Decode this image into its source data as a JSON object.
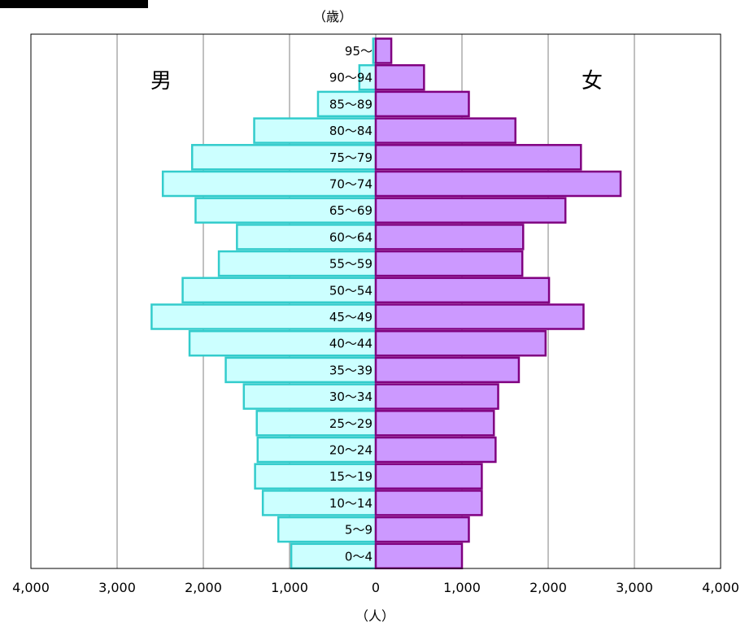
{
  "chart_data": {
    "type": "bar",
    "subtype": "population-pyramid",
    "categories": [
      "0〜4",
      "5〜9",
      "10〜14",
      "15〜19",
      "20〜24",
      "25〜29",
      "30〜34",
      "35〜39",
      "40〜44",
      "45〜49",
      "50〜54",
      "55〜59",
      "60〜64",
      "65〜69",
      "70〜74",
      "75〜79",
      "80〜84",
      "85〜89",
      "90〜94",
      "95〜"
    ],
    "series": [
      {
        "name": "男",
        "color": "#ccffff",
        "stroke": "#33cccc",
        "values": [
          980,
          1130,
          1310,
          1400,
          1370,
          1380,
          1530,
          1740,
          2160,
          2600,
          2240,
          1820,
          1610,
          2090,
          2470,
          2130,
          1410,
          670,
          190,
          30
        ]
      },
      {
        "name": "女",
        "color": "#cc99ff",
        "stroke": "#800080",
        "values": [
          1000,
          1080,
          1230,
          1230,
          1390,
          1370,
          1420,
          1660,
          1970,
          2410,
          2010,
          1700,
          1710,
          2200,
          2840,
          2380,
          1620,
          1080,
          560,
          180
        ]
      }
    ],
    "y_unit": "（歳）",
    "x_unit": "（人）",
    "xlim": [
      -4000,
      4000
    ],
    "xticks": [
      -4000,
      -3000,
      -2000,
      -1000,
      0,
      1000,
      2000,
      3000,
      4000
    ],
    "xtick_labels": [
      "4,000",
      "3,000",
      "2,000",
      "1,000",
      "0",
      "1,000",
      "2,000",
      "3,000",
      "4,000"
    ],
    "grid": "vertical"
  }
}
